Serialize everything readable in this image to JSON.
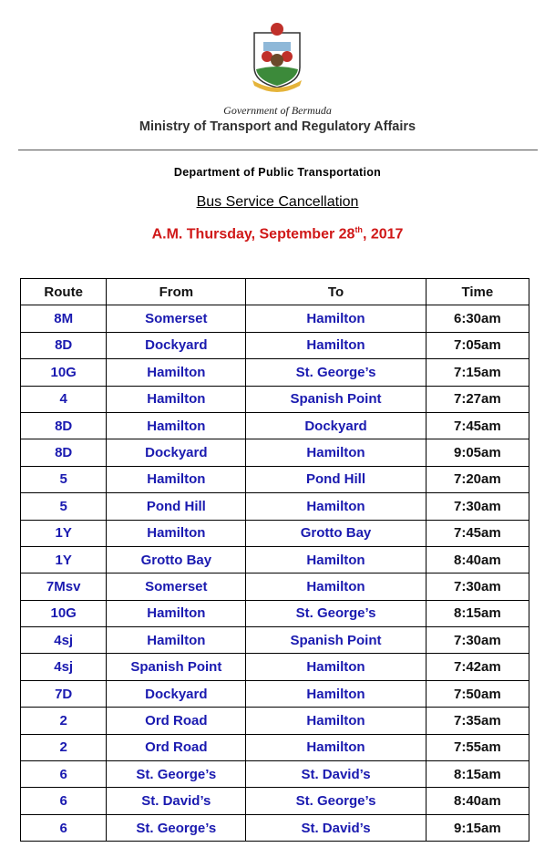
{
  "header": {
    "government": "Government of Bermuda",
    "ministry": "Ministry of Transport and Regulatory Affairs",
    "department": "Department of Public Transportation",
    "title": "Bus Service Cancellation",
    "date_prefix": "A.M. Thursday, September 28",
    "date_suffix": "th",
    "date_year": ", 2017",
    "crest_icon": "bermuda-coat-of-arms"
  },
  "colors": {
    "route_text": "#1a1ab0",
    "date": "#d01818"
  },
  "table": {
    "columns": [
      "Route",
      "From",
      "To",
      "Time"
    ],
    "rows": [
      [
        "8M",
        "Somerset",
        "Hamilton",
        "6:30am"
      ],
      [
        "8D",
        "Dockyard",
        "Hamilton",
        "7:05am"
      ],
      [
        "10G",
        "Hamilton",
        "St. George’s",
        "7:15am"
      ],
      [
        "4",
        "Hamilton",
        "Spanish Point",
        "7:27am"
      ],
      [
        "8D",
        "Hamilton",
        "Dockyard",
        "7:45am"
      ],
      [
        "8D",
        "Dockyard",
        "Hamilton",
        "9:05am"
      ],
      [
        "5",
        "Hamilton",
        "Pond Hill",
        "7:20am"
      ],
      [
        "5",
        "Pond Hill",
        "Hamilton",
        "7:30am"
      ],
      [
        "1Y",
        "Hamilton",
        "Grotto Bay",
        "7:45am"
      ],
      [
        "1Y",
        "Grotto Bay",
        "Hamilton",
        "8:40am"
      ],
      [
        "7Msv",
        "Somerset",
        "Hamilton",
        "7:30am"
      ],
      [
        "10G",
        "Hamilton",
        "St. George’s",
        "8:15am"
      ],
      [
        "4sj",
        "Hamilton",
        "Spanish Point",
        "7:30am"
      ],
      [
        "4sj",
        "Spanish Point",
        "Hamilton",
        "7:42am"
      ],
      [
        "7D",
        "Dockyard",
        "Hamilton",
        "7:50am"
      ],
      [
        "2",
        "Ord Road",
        "Hamilton",
        "7:35am"
      ],
      [
        "2",
        "Ord Road",
        "Hamilton",
        "7:55am"
      ],
      [
        "6",
        "St. George’s",
        "St. David’s",
        "8:15am"
      ],
      [
        "6",
        "St. David’s",
        "St. George’s",
        "8:40am"
      ],
      [
        "6",
        "St. George’s",
        "St. David’s",
        "9:15am"
      ]
    ]
  }
}
